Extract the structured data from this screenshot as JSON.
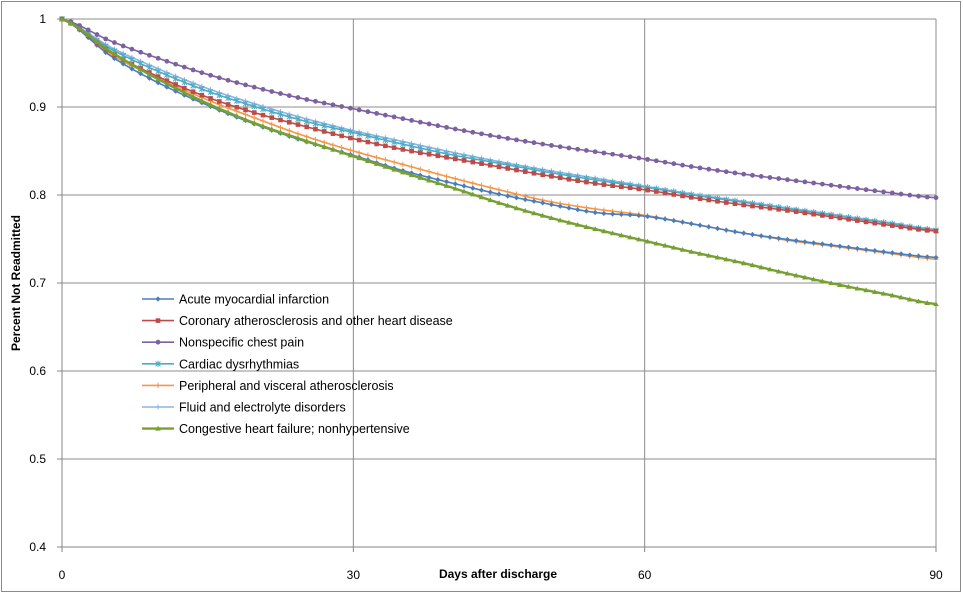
{
  "chart_data": {
    "type": "line",
    "title": "",
    "xlabel": "Days after discharge",
    "ylabel": "Percent Not Readmitted",
    "xlim": [
      0,
      90
    ],
    "ylim": [
      0.4,
      1
    ],
    "x_ticks": [
      0,
      30,
      60,
      90
    ],
    "y_ticks": [
      0.4,
      0.5,
      0.6,
      0.7,
      0.8,
      0.9,
      1
    ],
    "grid": true,
    "legend_position": "left-center",
    "series": [
      {
        "name": "Acute myocardial infarction",
        "color": "#4a7ebb",
        "marker": "diamond",
        "x": [
          0,
          5,
          10,
          15,
          20,
          25,
          30,
          35,
          40,
          45,
          50,
          55,
          60,
          65,
          70,
          75,
          80,
          85,
          90
        ],
        "y": [
          1.0,
          0.958,
          0.927,
          0.902,
          0.88,
          0.861,
          0.845,
          0.828,
          0.814,
          0.801,
          0.79,
          0.78,
          0.776,
          0.767,
          0.757,
          0.749,
          0.742,
          0.735,
          0.729
        ]
      },
      {
        "name": "Coronary atherosclerosis and other heart disease",
        "color": "#be4b48",
        "marker": "square",
        "x": [
          0,
          5,
          10,
          15,
          20,
          25,
          30,
          35,
          40,
          45,
          50,
          55,
          60,
          65,
          70,
          75,
          80,
          85,
          90
        ],
        "y": [
          1.0,
          0.962,
          0.934,
          0.911,
          0.893,
          0.878,
          0.864,
          0.852,
          0.842,
          0.832,
          0.822,
          0.813,
          0.806,
          0.797,
          0.789,
          0.782,
          0.774,
          0.766,
          0.759
        ]
      },
      {
        "name": "Nonspecific chest pain",
        "color": "#7d60a0",
        "marker": "circle",
        "x": [
          0,
          5,
          10,
          15,
          20,
          25,
          30,
          35,
          40,
          45,
          50,
          55,
          60,
          65,
          70,
          75,
          80,
          85,
          90
        ],
        "y": [
          1.0,
          0.975,
          0.955,
          0.937,
          0.922,
          0.909,
          0.898,
          0.887,
          0.876,
          0.866,
          0.857,
          0.849,
          0.841,
          0.832,
          0.824,
          0.817,
          0.81,
          0.803,
          0.797
        ]
      },
      {
        "name": "Cardiac dysrhythmias",
        "color": "#4bacc6",
        "marker": "star",
        "x": [
          0,
          5,
          10,
          15,
          20,
          25,
          30,
          35,
          40,
          45,
          50,
          55,
          60,
          65,
          70,
          75,
          80,
          85,
          90
        ],
        "y": [
          1.0,
          0.966,
          0.94,
          0.918,
          0.9,
          0.884,
          0.871,
          0.858,
          0.846,
          0.836,
          0.826,
          0.817,
          0.809,
          0.8,
          0.792,
          0.784,
          0.776,
          0.768,
          0.76
        ]
      },
      {
        "name": "Peripheral and visceral atherosclerosis",
        "color": "#f79646",
        "marker": "plus",
        "x": [
          0,
          5,
          10,
          15,
          20,
          25,
          30,
          35,
          40,
          45,
          50,
          55,
          60,
          65,
          70,
          75,
          80,
          85,
          90
        ],
        "y": [
          1.0,
          0.96,
          0.932,
          0.908,
          0.887,
          0.867,
          0.85,
          0.835,
          0.82,
          0.806,
          0.793,
          0.784,
          0.777,
          0.767,
          0.757,
          0.748,
          0.741,
          0.734,
          0.727
        ]
      },
      {
        "name": "Fluid and  electrolyte disorders",
        "color": "#8eb4e3",
        "marker": "plus",
        "x": [
          0,
          5,
          10,
          15,
          20,
          25,
          30,
          35,
          40,
          45,
          50,
          55,
          60,
          65,
          70,
          75,
          80,
          85,
          90
        ],
        "y": [
          1.0,
          0.968,
          0.943,
          0.921,
          0.903,
          0.887,
          0.873,
          0.861,
          0.849,
          0.838,
          0.828,
          0.819,
          0.81,
          0.801,
          0.793,
          0.785,
          0.777,
          0.769,
          0.761
        ]
      },
      {
        "name": "Congestive heart failure; nonhypertensive",
        "color": "#77a033",
        "marker": "triangle",
        "x": [
          0,
          5,
          10,
          15,
          20,
          25,
          30,
          35,
          40,
          45,
          50,
          55,
          60,
          65,
          70,
          75,
          80,
          85,
          90
        ],
        "y": [
          1.0,
          0.963,
          0.931,
          0.904,
          0.881,
          0.862,
          0.844,
          0.826,
          0.809,
          0.791,
          0.775,
          0.761,
          0.748,
          0.735,
          0.723,
          0.71,
          0.698,
          0.687,
          0.676
        ]
      }
    ]
  }
}
